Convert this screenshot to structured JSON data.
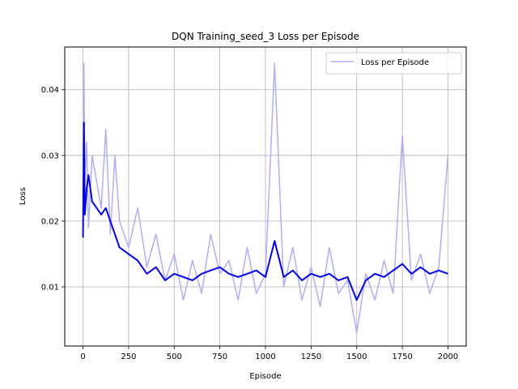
{
  "chart_data": {
    "type": "line",
    "title": "DQN Training_seed_3 Loss per Episode",
    "xlabel": "Episode",
    "ylabel": "Loss",
    "xlim": [
      -100,
      2100
    ],
    "ylim": [
      0.001,
      0.0465
    ],
    "xticks": [
      0,
      250,
      500,
      750,
      1000,
      1250,
      1500,
      1750,
      2000
    ],
    "yticks": [
      0.01,
      0.02,
      0.03,
      0.04
    ],
    "xtick_labels": [
      "0",
      "250",
      "500",
      "750",
      "1000",
      "1250",
      "1500",
      "1750",
      "2000"
    ],
    "ytick_labels": [
      "0.01",
      "0.02",
      "0.03",
      "0.04"
    ],
    "grid": true,
    "legend_position": "top-right",
    "series": [
      {
        "name": "Loss per Episode",
        "color": "#aeaefc",
        "x": [
          0,
          5,
          10,
          20,
          30,
          50,
          75,
          100,
          125,
          150,
          175,
          200,
          250,
          300,
          350,
          400,
          450,
          500,
          550,
          600,
          650,
          700,
          750,
          800,
          850,
          900,
          950,
          1000,
          1050,
          1100,
          1150,
          1200,
          1250,
          1300,
          1350,
          1400,
          1450,
          1500,
          1550,
          1600,
          1650,
          1700,
          1750,
          1800,
          1850,
          1900,
          1950,
          2000
        ],
        "y": [
          0.018,
          0.044,
          0.026,
          0.032,
          0.019,
          0.03,
          0.026,
          0.022,
          0.034,
          0.018,
          0.03,
          0.02,
          0.016,
          0.022,
          0.013,
          0.018,
          0.011,
          0.015,
          0.008,
          0.014,
          0.009,
          0.018,
          0.012,
          0.014,
          0.008,
          0.016,
          0.009,
          0.012,
          0.044,
          0.01,
          0.016,
          0.008,
          0.013,
          0.007,
          0.016,
          0.009,
          0.011,
          0.003,
          0.012,
          0.008,
          0.014,
          0.009,
          0.033,
          0.011,
          0.015,
          0.009,
          0.013,
          0.03
        ]
      },
      {
        "name": "",
        "color": "#0000ff",
        "x": [
          0,
          5,
          10,
          20,
          30,
          50,
          75,
          100,
          125,
          150,
          175,
          200,
          250,
          300,
          350,
          400,
          450,
          500,
          550,
          600,
          650,
          700,
          750,
          800,
          850,
          900,
          950,
          1000,
          1050,
          1100,
          1150,
          1200,
          1250,
          1300,
          1350,
          1400,
          1450,
          1500,
          1550,
          1600,
          1650,
          1700,
          1750,
          1800,
          1850,
          1900,
          1950,
          2000
        ],
        "y": [
          0.0175,
          0.035,
          0.021,
          0.025,
          0.027,
          0.023,
          0.022,
          0.021,
          0.022,
          0.02,
          0.018,
          0.016,
          0.015,
          0.014,
          0.012,
          0.013,
          0.011,
          0.012,
          0.0115,
          0.011,
          0.012,
          0.0125,
          0.013,
          0.012,
          0.0115,
          0.012,
          0.0125,
          0.0115,
          0.017,
          0.0115,
          0.0125,
          0.011,
          0.012,
          0.0115,
          0.012,
          0.011,
          0.0115,
          0.008,
          0.011,
          0.012,
          0.0115,
          0.0125,
          0.0135,
          0.012,
          0.013,
          0.012,
          0.0125,
          0.012
        ]
      }
    ],
    "legend_entries": [
      {
        "label": "Loss per Episode",
        "color": "#aeaefc"
      }
    ]
  }
}
